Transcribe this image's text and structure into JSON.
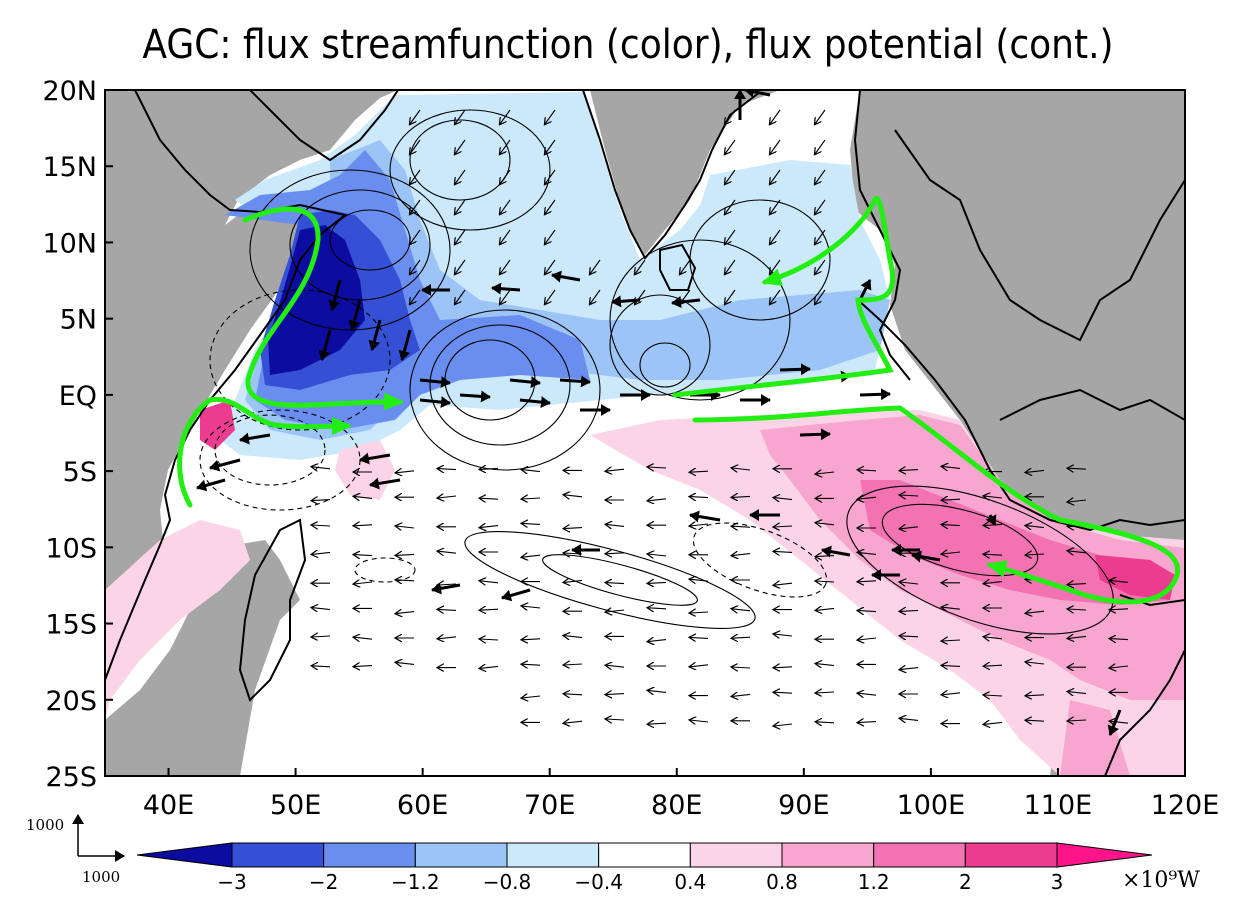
{
  "title": "AGC: flux streamfunction (color), flux potential (cont.)",
  "map": {
    "lon_range": [
      35,
      120
    ],
    "lat_range": [
      -25,
      20
    ],
    "lat_ticks": [
      {
        "value": 20,
        "label": "20N"
      },
      {
        "value": 15,
        "label": "15N"
      },
      {
        "value": 10,
        "label": "10N"
      },
      {
        "value": 5,
        "label": "5N"
      },
      {
        "value": 0,
        "label": "EQ"
      },
      {
        "value": -5,
        "label": "5S"
      },
      {
        "value": -10,
        "label": "10S"
      },
      {
        "value": -15,
        "label": "15S"
      },
      {
        "value": -20,
        "label": "20S"
      },
      {
        "value": -25,
        "label": "25S"
      }
    ],
    "lon_ticks": [
      {
        "value": 40,
        "label": "40E"
      },
      {
        "value": 50,
        "label": "50E"
      },
      {
        "value": 60,
        "label": "60E"
      },
      {
        "value": 70,
        "label": "70E"
      },
      {
        "value": 80,
        "label": "80E"
      },
      {
        "value": 90,
        "label": "90E"
      },
      {
        "value": 100,
        "label": "100E"
      },
      {
        "value": 110,
        "label": "110E"
      },
      {
        "value": 120,
        "label": "120E"
      }
    ],
    "colors": {
      "land": "#a6a6a6",
      "ocean": "#ffffff",
      "coast": "#000000",
      "highlight_arrows": "#22ee11"
    }
  },
  "reference_vector": {
    "x_label": "1000",
    "y_label": "1000"
  },
  "colorbar": {
    "unit": "×10⁹W",
    "ticks": [
      "−3",
      "−2",
      "−1.2",
      "−0.8",
      "−0.4",
      "0.4",
      "0.8",
      "1.2",
      "2",
      "3"
    ],
    "colors": [
      "#0c0ca0",
      "#3550d4",
      "#6a8ef0",
      "#9cc4f6",
      "#cce9fc",
      "#ffffff",
      "#fcd4e8",
      "#f7a6cf",
      "#f272b2",
      "#ec3c90",
      "#ff1489"
    ]
  }
}
